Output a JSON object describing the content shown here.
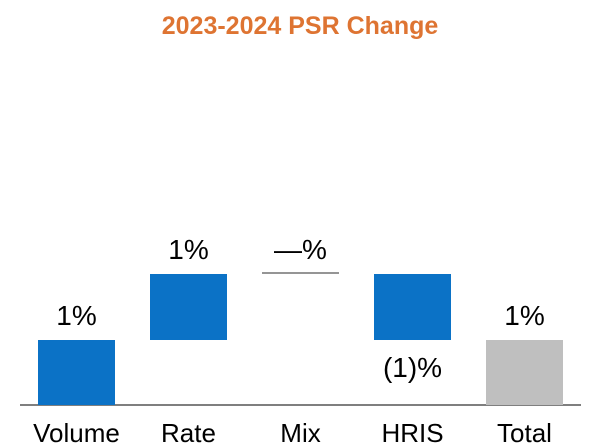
{
  "title": {
    "text": "2023-2024 PSR Change"
  },
  "colors": {
    "title": "#DE7432",
    "bar_change": "#0B72C6",
    "bar_total": "#BFBFBF",
    "axis_line": "#7F7F7F",
    "zero_marker_line": "#959595",
    "label_text": "#000000"
  },
  "chart_data": {
    "type": "bar",
    "subtype": "waterfall",
    "title": "2023-2024 PSR Change",
    "categories": [
      "Volume",
      "Rate",
      "Mix",
      "HRIS",
      "Total"
    ],
    "series": [
      {
        "name": "2023-2024 PSR Change",
        "values": [
          1,
          1,
          0,
          -1,
          1
        ]
      }
    ],
    "kinds": [
      "delta",
      "delta",
      "delta",
      "delta",
      "total"
    ],
    "value_labels": [
      "1%",
      "1%",
      "—%",
      "(1)%",
      "1%"
    ],
    "cumulative_start": [
      0,
      1,
      2,
      2,
      0
    ],
    "cumulative_end": [
      1,
      2,
      2,
      1,
      1
    ],
    "unit": "%",
    "xlabel": "",
    "ylabel": "",
    "ylim": [
      0,
      3
    ],
    "grid": false,
    "legend": false,
    "x_axis_line": true
  }
}
